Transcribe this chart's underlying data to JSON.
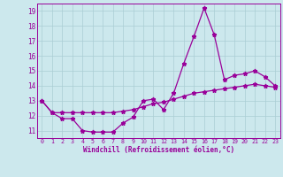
{
  "line1_x": [
    0,
    1,
    2,
    3,
    4,
    5,
    6,
    7,
    8,
    9,
    10,
    11,
    12,
    13,
    14,
    15,
    16,
    17,
    18,
    19,
    20,
    21,
    22,
    23
  ],
  "line1_y": [
    13.0,
    12.2,
    11.8,
    11.8,
    11.0,
    10.9,
    10.9,
    10.9,
    11.5,
    11.9,
    13.0,
    13.1,
    12.4,
    13.5,
    15.5,
    17.3,
    19.2,
    17.4,
    14.4,
    14.7,
    14.8,
    15.0,
    14.6,
    14.0
  ],
  "line2_x": [
    0,
    1,
    2,
    3,
    4,
    5,
    6,
    7,
    8,
    9,
    10,
    11,
    12,
    13,
    14,
    15,
    16,
    17,
    18,
    19,
    20,
    21,
    22,
    23
  ],
  "line2_y": [
    13.0,
    12.2,
    12.2,
    12.2,
    12.2,
    12.2,
    12.2,
    12.2,
    12.3,
    12.4,
    12.6,
    12.8,
    12.9,
    13.1,
    13.3,
    13.5,
    13.6,
    13.7,
    13.8,
    13.9,
    14.0,
    14.1,
    14.0,
    13.9
  ],
  "color": "#990099",
  "bg_color": "#cce8ed",
  "grid_color": "#aacdd4",
  "xlabel": "Windchill (Refroidissement éolien,°C)",
  "xlim": [
    -0.5,
    23.5
  ],
  "ylim": [
    10.5,
    19.5
  ],
  "yticks": [
    11,
    12,
    13,
    14,
    15,
    16,
    17,
    18,
    19
  ],
  "xticks": [
    0,
    1,
    2,
    3,
    4,
    5,
    6,
    7,
    8,
    9,
    10,
    11,
    12,
    13,
    14,
    15,
    16,
    17,
    18,
    19,
    20,
    21,
    22,
    23
  ],
  "marker": "*",
  "marker_size": 3.5,
  "linewidth": 0.9
}
